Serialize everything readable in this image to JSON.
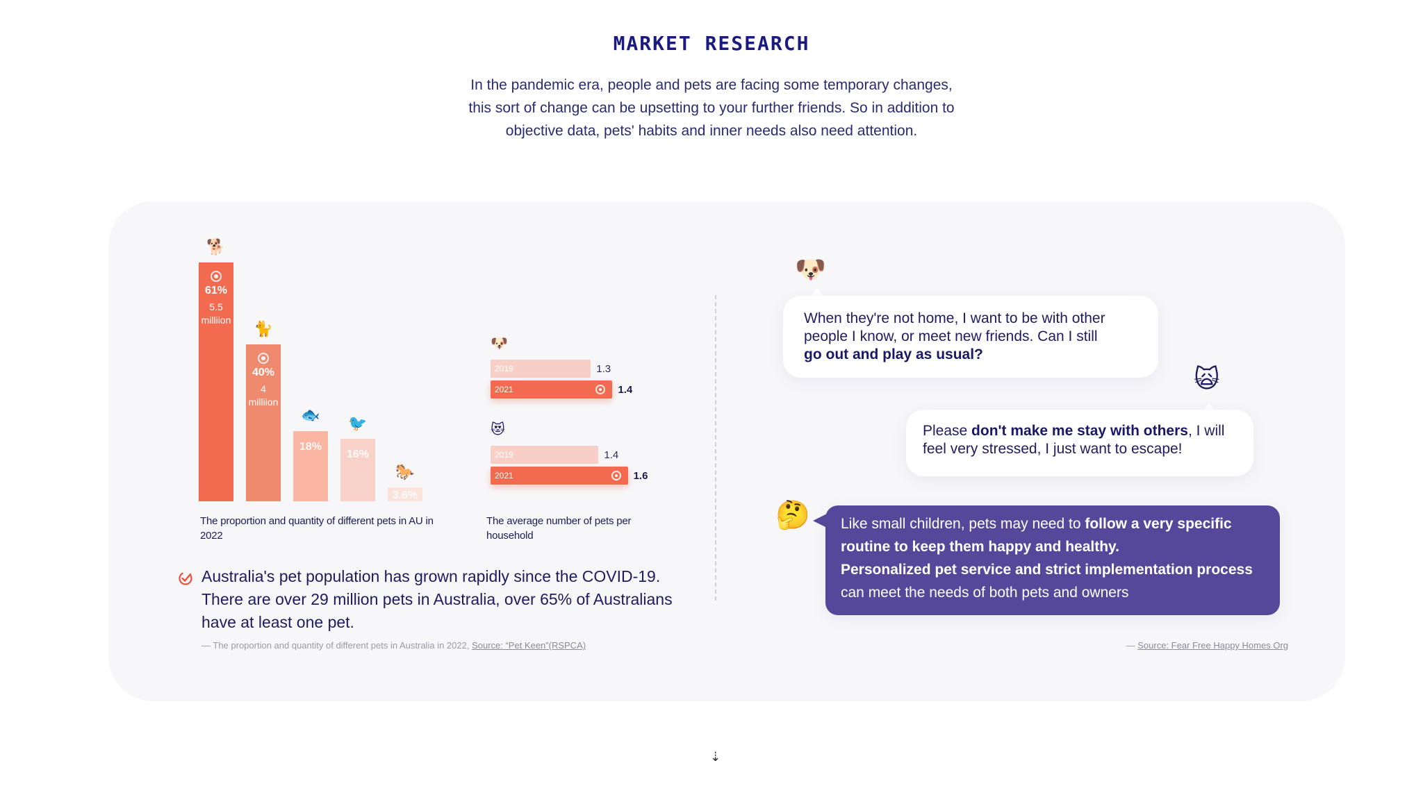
{
  "header": {
    "title": "MARKET RESEARCH",
    "intro_lines": [
      "In the pandemic era, people and pets are facing some temporary changes,",
      "this sort of change can be upsetting to your further friends. So in addition to",
      "objective data, pets' habits and inner needs also need attention."
    ]
  },
  "colors": {
    "accent": "#f26a4f",
    "accent2": "#ef8a6e",
    "accent_soft": "#fbb5a3",
    "accent_pale": "#f7d4cb",
    "purple": "#55489a",
    "navy": "#1e1b5e"
  },
  "left_panel": {
    "bar_chart": {
      "caption": "The proportion and quantity of different pets in AU in 2022",
      "bars": [
        {
          "icon": "dog-icon",
          "glyph": "🐕",
          "percent": 61,
          "label": "61%",
          "count_label": [
            "5.5",
            "milliion"
          ],
          "color": "#f26a4f"
        },
        {
          "icon": "cat-icon",
          "glyph": "🐈",
          "percent": 40,
          "label": "40%",
          "count_label": [
            "4",
            "milliion"
          ],
          "color": "#ef8a6e"
        },
        {
          "icon": "fish-icon",
          "glyph": "🐟",
          "percent": 18,
          "label": "18%",
          "count_label": [],
          "color": "#fbb5a3"
        },
        {
          "icon": "bird-icon",
          "glyph": "🐦",
          "percent": 16,
          "label": "16%",
          "count_label": [],
          "color": "#f8d2c8"
        },
        {
          "icon": "horse-icon",
          "glyph": "🐎",
          "percent": 3.6,
          "label": "3.6%",
          "count_label": [],
          "color": "#fbe3dc"
        }
      ]
    },
    "household_chart": {
      "caption": "The average number of pets per household",
      "groups": [
        {
          "icon": "dog-face-icon",
          "glyph": "🐶",
          "rows": [
            {
              "year": "2019",
              "value": 1.3,
              "label": "1.3",
              "bold": false
            },
            {
              "year": "2021",
              "value": 1.4,
              "label": "1.4",
              "bold": true
            }
          ]
        },
        {
          "icon": "cat-face-icon",
          "glyph": "😻",
          "rows": [
            {
              "year": "2019",
              "value": 1.4,
              "label": "1.4",
              "bold": false
            },
            {
              "year": "2021",
              "value": 1.6,
              "label": "1.6",
              "bold": true
            }
          ]
        }
      ]
    },
    "summary": {
      "text": "Australia's pet population has grown rapidly since the COVID-19. There are over 29 million pets in Australia, over 65% of Australians have at least one pet.",
      "source_prefix": "— The proportion and quantity of different pets in Australia in 2022, ",
      "source_link": "Source: “Pet Keen”(RSPCA)"
    }
  },
  "right_panel": {
    "bubble1": {
      "glyph": "🐶",
      "line1": "When they're not home, I want to be with other",
      "line2": "people I know, or meet new friends. Can I still",
      "bold": "go out and play as usual?"
    },
    "bubble2": {
      "glyph": "🙀",
      "pre": "Please ",
      "bold": "don't make me stay with others",
      "post": ", I will",
      "line2": "feel very stressed, I just want to escape!"
    },
    "bubble3": {
      "glyph": "🤔",
      "pre": "Like small children, pets may need to ",
      "bold1": "follow a very specific",
      "bold2": "routine to keep them happy and healthy.",
      "bold3": "Personalized pet service and strict implementation process",
      "post": "can meet the needs of both pets and owners"
    },
    "source_prefix": "— ",
    "source_link": "Source: Fear Free Happy Homes Org"
  },
  "footer": {
    "arrow_glyph": "⇣"
  }
}
